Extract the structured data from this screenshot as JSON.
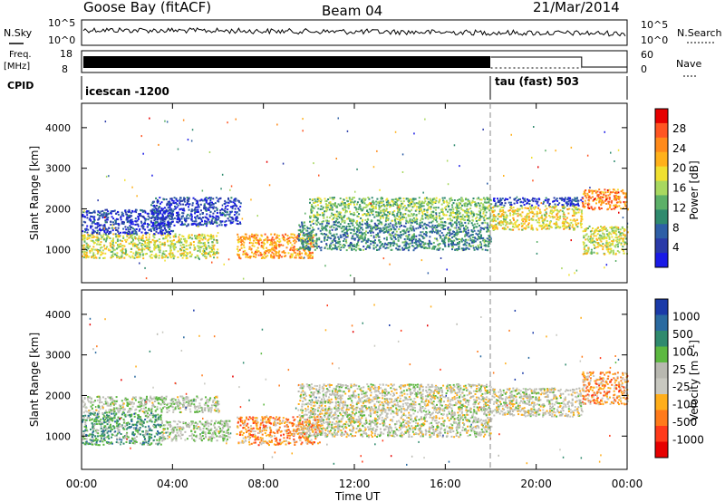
{
  "header": {
    "station": "Goose Bay (fitACF)",
    "beam": "Beam 04",
    "date": "21/Mar/2014"
  },
  "summary": {
    "nsky_label": "N.Sky",
    "nsky_ticks": [
      "10^5",
      "10^0"
    ],
    "nsearch_label": "N.Search",
    "nsearch_ticks": [
      "10^5",
      "10^0"
    ],
    "freq_label_1": "Freq.",
    "freq_label_2": "[MHz]",
    "freq_ticks": [
      "18",
      "8"
    ],
    "nave_label": "Nave",
    "nave_ticks": [
      "60",
      "0"
    ],
    "cpid_label": "CPID",
    "cpid_segments": [
      {
        "label": "icescan -1200",
        "start_hour": 0,
        "end_hour": 18
      },
      {
        "label": "tau (fast) 503",
        "start_hour": 18,
        "end_hour": 24
      }
    ],
    "freq_steps": [
      {
        "start_hour": 0,
        "end_hour": 18,
        "level": "fluctuating"
      },
      {
        "start_hour": 18,
        "end_hour": 22,
        "level": 0.35
      },
      {
        "start_hour": 22,
        "end_hour": 24,
        "level": 0.1
      }
    ],
    "nave_steps": [
      {
        "start_hour": 18,
        "end_hour": 22,
        "level": 0.6
      },
      {
        "start_hour": 22,
        "end_hour": 24,
        "level": 0.9
      }
    ]
  },
  "axes": {
    "ylabel": "Slant Range [km]",
    "xlabel": "Time UT",
    "y_ticks": [
      "4000",
      "3000",
      "2000",
      "1000"
    ],
    "x_ticks": [
      "00:00",
      "04:00",
      "08:00",
      "12:00",
      "16:00",
      "20:00",
      "00:00"
    ]
  },
  "colorbars": {
    "power": {
      "label": "Power [dB]",
      "ticks": [
        "28",
        "24",
        "20",
        "16",
        "12",
        "8",
        "4"
      ],
      "colors": [
        "#e60000",
        "#ff5522",
        "#ff8a1a",
        "#ffb11a",
        "#f0e030",
        "#a8d860",
        "#5cb068",
        "#2f8a6e",
        "#2e5fa6",
        "#2a3aa8",
        "#1a1ae6"
      ]
    },
    "velocity": {
      "label": "Velocity [m s-1]",
      "label_main": "Velocity [m s",
      "label_sup": "-1",
      "label_end": "]",
      "ticks": [
        "1000",
        "500",
        "100",
        "25",
        "-25",
        "-100",
        "-500",
        "-1000"
      ],
      "colors": [
        "#1a3aa8",
        "#2a6aa0",
        "#2f8a6e",
        "#5cb840",
        "#b8b8b0",
        "#c8c8c0",
        "#ffae1a",
        "#ff7a1a",
        "#ff3a1a",
        "#e60000"
      ]
    }
  },
  "chart_data": [
    {
      "type": "heatmap",
      "name": "power",
      "xlabel": "Time UT",
      "ylabel": "Slant Range [km]",
      "xlim": [
        0,
        24
      ],
      "ylim": [
        180,
        4600
      ],
      "colorbar_label": "Power [dB]",
      "colorbar_ticks": [
        28,
        24,
        20,
        16,
        12,
        8,
        4
      ],
      "scatter_regions": [
        {
          "start_hour": 0.0,
          "end_hour": 6.0,
          "range_low_km": 800,
          "range_high_km": 1400,
          "level": 0.55
        },
        {
          "start_hour": 0.0,
          "end_hour": 4.0,
          "range_low_km": 1400,
          "range_high_km": 2000,
          "level": 0.1
        },
        {
          "start_hour": 3.0,
          "end_hour": 7.0,
          "range_low_km": 1600,
          "range_high_km": 2300,
          "level": 0.1
        },
        {
          "start_hour": 6.8,
          "end_hour": 10.2,
          "range_low_km": 800,
          "range_high_km": 1400,
          "level": 0.75
        },
        {
          "start_hour": 9.5,
          "end_hour": 18.0,
          "range_low_km": 1000,
          "range_high_km": 1700,
          "level": 0.3
        },
        {
          "start_hour": 10.0,
          "end_hour": 18.0,
          "range_low_km": 1700,
          "range_high_km": 2300,
          "level": 0.45
        },
        {
          "start_hour": 18.0,
          "end_hour": 22.0,
          "range_low_km": 1500,
          "range_high_km": 2100,
          "level": 0.6
        },
        {
          "start_hour": 18.0,
          "end_hour": 22.0,
          "range_low_km": 2100,
          "range_high_km": 2300,
          "level": 0.1
        },
        {
          "start_hour": 22.0,
          "end_hour": 24.0,
          "range_low_km": 900,
          "range_high_km": 1600,
          "level": 0.55
        },
        {
          "start_hour": 22.0,
          "end_hour": 24.0,
          "range_low_km": 2000,
          "range_high_km": 2500,
          "level": 0.8
        }
      ]
    },
    {
      "type": "heatmap",
      "name": "velocity",
      "xlabel": "Time UT",
      "ylabel": "Slant Range [km]",
      "xlim": [
        0,
        24
      ],
      "ylim": [
        180,
        4600
      ],
      "colorbar_label": "Velocity [m s-1]",
      "colorbar_ticks": [
        1000,
        500,
        100,
        25,
        -25,
        -100,
        -500,
        -1000
      ],
      "scatter_regions": [
        {
          "start_hour": 0.0,
          "end_hour": 3.5,
          "range_low_km": 800,
          "range_high_km": 1600,
          "level": 0.3
        },
        {
          "start_hour": 0.0,
          "end_hour": 6.0,
          "range_low_km": 1600,
          "range_high_km": 2000,
          "level": 0.45
        },
        {
          "start_hour": 3.5,
          "end_hour": 6.5,
          "range_low_km": 900,
          "range_high_km": 1400,
          "level": 0.45
        },
        {
          "start_hour": 6.8,
          "end_hour": 10.5,
          "range_low_km": 800,
          "range_high_km": 1500,
          "level": 0.72
        },
        {
          "start_hour": 9.5,
          "end_hour": 18.0,
          "range_low_km": 1000,
          "range_high_km": 2300,
          "level": 0.5
        },
        {
          "start_hour": 18.0,
          "end_hour": 22.0,
          "range_low_km": 1500,
          "range_high_km": 2200,
          "level": 0.5
        },
        {
          "start_hour": 22.0,
          "end_hour": 24.0,
          "range_low_km": 1800,
          "range_high_km": 2600,
          "level": 0.7
        }
      ]
    }
  ]
}
